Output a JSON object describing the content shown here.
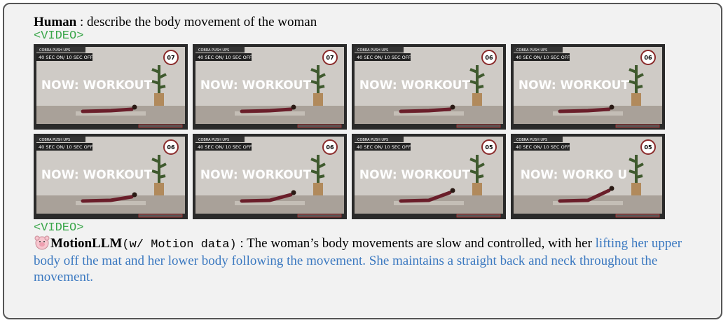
{
  "human": {
    "speaker": "Human",
    "separator": " : ",
    "text": "describe the body movement of the woman"
  },
  "video_tag_open": "<VIDEO>",
  "frames": [
    {
      "header": "COBRA PUSH UPS",
      "subheader": "40 SEC ON/ 10 SEC OFF",
      "overlay": "NOW: WORKOUT",
      "timer": "07"
    },
    {
      "header": "COBRA PUSH UPS",
      "subheader": "40 SEC ON/ 10 SEC OFF",
      "overlay": "NOW: WORKOUT",
      "timer": "07"
    },
    {
      "header": "COBRA PUSH UPS",
      "subheader": "40 SEC ON/ 10 SEC OFF",
      "overlay": "NOW: WORKOUT",
      "timer": "06"
    },
    {
      "header": "COBRA PUSH UPS",
      "subheader": "40 SEC ON/ 10 SEC OFF",
      "overlay": "NOW: WORKOUT",
      "timer": "06"
    },
    {
      "header": "COBRA PUSH UPS",
      "subheader": "40 SEC ON/ 10 SEC OFF",
      "overlay": "NOW: WORKOUT",
      "timer": "06"
    },
    {
      "header": "COBRA PUSH UPS",
      "subheader": "40 SEC ON/ 10 SEC OFF",
      "overlay": "NOW: WORKOUT",
      "timer": "06"
    },
    {
      "header": "COBRA PUSH UPS",
      "subheader": "40 SEC ON/ 10 SEC OFF",
      "overlay": "NOW: WORKOUT",
      "timer": "05"
    },
    {
      "header": "COBRA PUSH UPS",
      "subheader": "40 SEC ON/ 10 SEC OFF",
      "overlay": "NOW: WORKO U",
      "timer": "05"
    }
  ],
  "video_tag_close": "<VIDEO>",
  "response": {
    "speaker": "MotionLLM",
    "setting": "(w/ Motion data)",
    "separator": " : ",
    "text": "The woman’s body movements are slow and controlled, with her ",
    "highlight": "lifting her upper body off the mat and her lower body following the movement. She maintains a straight back and neck throughout the movement."
  }
}
